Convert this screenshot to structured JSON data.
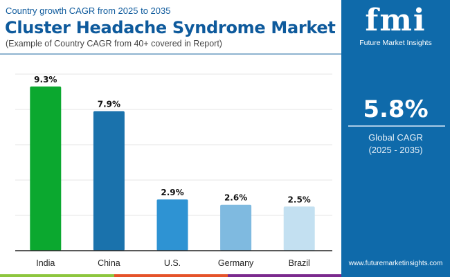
{
  "header": {
    "subtitle": "Country growth CAGR from 2025 to 2035",
    "title": "Cluster Headache Syndrome Market",
    "note": "(Example of Country CAGR from 40+ covered in Report)"
  },
  "panel": {
    "brand_mark": "fmi",
    "brand_name": "Future Market Insights",
    "global_cagr": "5.8%",
    "global_label": "Global CAGR",
    "period": "(2025 - 2035)",
    "url": "www.futuremarketinsights.com",
    "background": "#0f6aaa"
  },
  "chart_data": {
    "type": "bar",
    "categories": [
      "India",
      "China",
      "U.S.",
      "Germany",
      "Brazil"
    ],
    "values": [
      9.3,
      7.9,
      2.9,
      2.6,
      2.5
    ],
    "labels": [
      "9.3%",
      "7.9%",
      "2.9%",
      "2.6%",
      "2.5%"
    ],
    "colors": [
      "#0ba82f",
      "#1a72ac",
      "#2e93d3",
      "#7fbae0",
      "#c3e0f1"
    ],
    "ylim": [
      0,
      10
    ],
    "grid": true,
    "title": "",
    "xlabel": "",
    "ylabel": ""
  }
}
